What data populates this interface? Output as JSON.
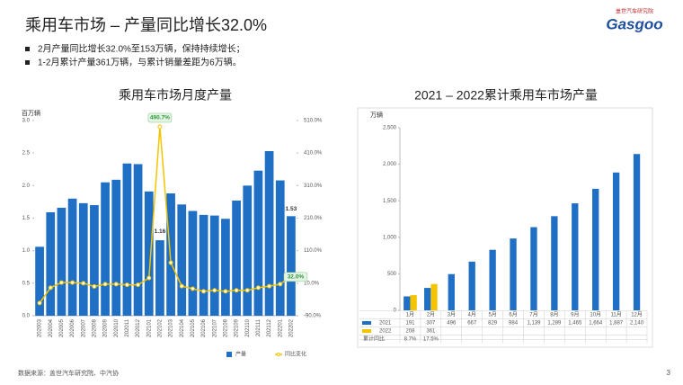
{
  "header": {
    "title": "乘用车市场 – 产量同比增长32.0%",
    "bullets": [
      "2月产量同比增长32.0%至153万辆，保持持续增长；",
      "1-2月累计产量361万辆，与累计销量差距为6万辆。"
    ],
    "logo": "Gasgoo",
    "logo_sub": "盖世汽车研究院"
  },
  "chart_data": [
    {
      "type": "bar",
      "title": "乘用车市场月度产量",
      "y_label": "百万辆",
      "categories": [
        "202003",
        "202004",
        "202005",
        "202006",
        "202007",
        "202008",
        "202009",
        "202010",
        "202011",
        "202012",
        "202101",
        "202102",
        "202103",
        "202104",
        "202105",
        "202106",
        "202107",
        "202108",
        "202109",
        "202110",
        "202111",
        "202112",
        "202201",
        "202202"
      ],
      "series": [
        {
          "name": "产量",
          "color": "#1f6fc5",
          "values": [
            1.06,
            1.59,
            1.66,
            1.8,
            1.73,
            1.7,
            2.05,
            2.09,
            2.34,
            2.33,
            1.91,
            1.16,
            1.88,
            1.71,
            1.61,
            1.55,
            1.54,
            1.49,
            1.77,
            2.0,
            2.23,
            2.53,
            2.08,
            1.53
          ],
          "value_labels": [
            null,
            null,
            null,
            null,
            null,
            null,
            null,
            null,
            null,
            null,
            null,
            "1.16",
            null,
            null,
            null,
            null,
            null,
            null,
            null,
            null,
            null,
            null,
            null,
            "1.53"
          ]
        },
        {
          "name": "同比变化",
          "type": "line",
          "axis": "y2",
          "color": "#f5c400",
          "values": [
            -51,
            -4,
            12,
            12,
            10,
            0,
            7,
            7,
            5,
            5,
            26,
            490.7,
            73,
            1,
            -7,
            -15,
            -12,
            -15,
            -12,
            -12,
            -4,
            1,
            7,
            32.0
          ],
          "value_labels": [
            null,
            null,
            null,
            null,
            null,
            null,
            null,
            null,
            null,
            null,
            null,
            "490.7%",
            null,
            null,
            null,
            null,
            null,
            null,
            null,
            null,
            null,
            null,
            null,
            "32.0%"
          ]
        }
      ],
      "ylim": [
        0,
        3
      ],
      "yticks": [
        {
          "value": 0,
          "label": "0.0"
        },
        0.5,
        {
          "value": 1,
          "label": "1.0"
        },
        1.5,
        {
          "value": 2,
          "label": "2.0"
        },
        2.5,
        {
          "value": 3,
          "label": "3.0"
        }
      ],
      "y2lim": [
        -90,
        510
      ],
      "y2ticks": [
        {
          "value": -90,
          "label": "-90.0%"
        },
        {
          "value": 10,
          "label": "10.0%"
        },
        {
          "value": 110,
          "label": "110.0%"
        },
        {
          "value": 210,
          "label": "210.0%"
        },
        {
          "value": 310,
          "label": "310.0%"
        },
        {
          "value": 410,
          "label": "410.0%"
        },
        {
          "value": 510,
          "label": "510.0%"
        }
      ],
      "legend": "bottom-right"
    },
    {
      "type": "bar",
      "title": "2021 – 2022累计乘用车市场产量",
      "y_label": "万辆",
      "categories": [
        "1月",
        "2月",
        "3月",
        "4月",
        "5月",
        "6月",
        "7月",
        "8月",
        "9月",
        "10月",
        "11月",
        "12月"
      ],
      "series": [
        {
          "name": "2021",
          "color": "#1f6fc5",
          "values": [
            191,
            307,
            496,
            667,
            829,
            984,
            1139,
            1289,
            1465,
            1664,
            1887,
            2140
          ],
          "value_labels": [
            "191",
            "307",
            "496",
            "667",
            "829",
            "984",
            "1,139",
            "1,289",
            "1,465",
            "1,664",
            "1,887",
            "2,140"
          ]
        },
        {
          "name": "2022",
          "color": "#f5c400",
          "values": [
            208,
            361,
            null,
            null,
            null,
            null,
            null,
            null,
            null,
            null,
            null,
            null
          ],
          "value_labels": [
            "208",
            "361",
            null,
            null,
            null,
            null,
            null,
            null,
            null,
            null,
            null,
            null
          ]
        }
      ],
      "table_row": {
        "name": "累计同比",
        "values": [
          8.7,
          17.5
        ],
        "value_labels": [
          "8.7%",
          "17.5%"
        ]
      },
      "ylim": [
        0,
        2500
      ],
      "yticks": [
        0,
        500,
        {
          "value": 1000,
          "label": "1,000"
        },
        {
          "value": 1500,
          "label": "1,500"
        },
        {
          "value": 2000,
          "label": "2,000"
        },
        {
          "value": 2500,
          "label": "2,500"
        }
      ],
      "legend": "table"
    }
  ],
  "footer": {
    "source": "数据来源：盖世汽车研究院、中汽协",
    "page": "3"
  }
}
